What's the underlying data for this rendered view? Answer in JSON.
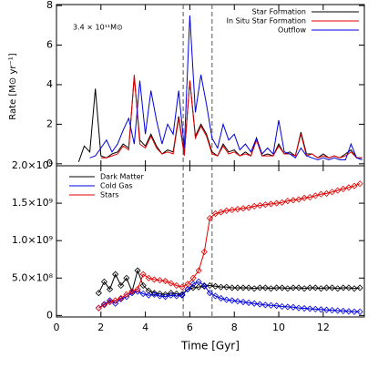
{
  "chart_data": [
    {
      "type": "line",
      "annotation": "3.4 × 10¹¹M⊙",
      "y_label": "Rate [M⊙ yr⁻¹]",
      "xlim": [
        0,
        13.85
      ],
      "ylim": [
        -0.1,
        8.05
      ],
      "yticks": [
        0,
        2,
        4,
        6,
        8
      ],
      "xticks": [
        0,
        2,
        4,
        6,
        8,
        10,
        12
      ],
      "vlines": [
        5.7,
        7.0
      ],
      "legend": "upper right",
      "x": [
        1.0,
        1.25,
        1.5,
        1.75,
        2.0,
        2.25,
        2.5,
        2.75,
        3.0,
        3.25,
        3.5,
        3.75,
        4.0,
        4.25,
        4.5,
        4.75,
        5.0,
        5.25,
        5.5,
        5.75,
        6.0,
        6.25,
        6.5,
        6.75,
        7.0,
        7.25,
        7.5,
        7.75,
        8.0,
        8.25,
        8.5,
        8.75,
        9.0,
        9.25,
        9.5,
        9.75,
        10.0,
        10.25,
        10.5,
        10.75,
        11.0,
        11.25,
        11.5,
        11.75,
        12.0,
        12.25,
        12.5,
        12.75,
        13.0,
        13.25,
        13.5,
        13.75
      ],
      "series": [
        {
          "name": "Star Formation",
          "color": "#000000",
          "values": [
            0.1,
            0.9,
            0.6,
            3.8,
            0.4,
            0.3,
            0.5,
            0.6,
            1.0,
            0.8,
            4.4,
            1.2,
            0.9,
            1.5,
            0.9,
            0.5,
            0.7,
            0.6,
            2.4,
            0.5,
            4.2,
            1.4,
            2.0,
            1.5,
            0.6,
            0.4,
            1.0,
            0.6,
            0.7,
            0.4,
            0.6,
            0.4,
            1.3,
            0.4,
            0.5,
            0.4,
            1.0,
            0.5,
            0.6,
            0.4,
            1.6,
            0.5,
            0.5,
            0.3,
            0.5,
            0.3,
            0.4,
            0.3,
            0.5,
            0.7,
            0.3,
            0.3
          ]
        },
        {
          "name": "In Situ Star Formation",
          "color": "#e00000",
          "values": [
            null,
            null,
            null,
            null,
            0.3,
            0.3,
            0.4,
            0.5,
            0.9,
            0.7,
            4.5,
            1.0,
            0.8,
            1.4,
            0.8,
            0.5,
            0.6,
            0.5,
            2.3,
            0.4,
            4.2,
            1.3,
            1.9,
            1.4,
            0.5,
            0.4,
            0.9,
            0.5,
            0.6,
            0.4,
            0.5,
            0.4,
            1.2,
            0.4,
            0.4,
            0.4,
            0.9,
            0.5,
            0.5,
            0.4,
            1.5,
            0.4,
            0.5,
            0.3,
            0.4,
            0.3,
            0.4,
            0.3,
            0.4,
            0.6,
            0.3,
            0.3
          ]
        },
        {
          "name": "Outflow",
          "color": "#0000e0",
          "values": [
            null,
            null,
            0.3,
            0.4,
            0.8,
            1.2,
            0.6,
            1.0,
            1.7,
            2.3,
            1.0,
            4.2,
            1.5,
            3.7,
            2.2,
            1.0,
            2.0,
            1.5,
            3.7,
            0.8,
            7.5,
            2.6,
            4.5,
            3.0,
            1.3,
            0.8,
            2.0,
            1.2,
            1.5,
            0.7,
            1.0,
            0.6,
            1.3,
            0.5,
            0.8,
            0.5,
            2.2,
            0.6,
            0.5,
            0.3,
            0.8,
            0.4,
            0.3,
            0.2,
            0.3,
            0.2,
            0.3,
            0.2,
            0.2,
            1.0,
            0.3,
            0.2
          ]
        }
      ]
    },
    {
      "type": "scatter-line",
      "x_label": "Time [Gyr]",
      "xlim": [
        0,
        13.85
      ],
      "ylim": [
        -20000000,
        2000000000
      ],
      "xticks": [
        0,
        2,
        4,
        6,
        8,
        10,
        12
      ],
      "yticks": [
        0,
        {
          "value": 500000000,
          "label": "5.0×10⁸"
        },
        {
          "value": 1000000000,
          "label": "1.0×10⁹"
        },
        {
          "value": 1500000000,
          "label": "1.5×10⁹"
        },
        {
          "value": 2000000000,
          "label": "2.0×10⁹"
        }
      ],
      "vlines": [
        5.7,
        7.0
      ],
      "legend": "upper left",
      "x": [
        1.9,
        2.15,
        2.4,
        2.65,
        2.9,
        3.15,
        3.4,
        3.65,
        3.9,
        4.15,
        4.4,
        4.65,
        4.9,
        5.15,
        5.4,
        5.65,
        5.9,
        6.15,
        6.4,
        6.65,
        6.9,
        7.15,
        7.4,
        7.65,
        7.9,
        8.15,
        8.4,
        8.65,
        8.9,
        9.15,
        9.4,
        9.65,
        9.9,
        10.15,
        10.4,
        10.65,
        10.9,
        11.15,
        11.4,
        11.65,
        11.9,
        12.15,
        12.4,
        12.65,
        12.9,
        13.15,
        13.4,
        13.65
      ],
      "series": [
        {
          "name": "Dark Matter",
          "color": "#000000",
          "values": [
            300000000.0,
            450000000.0,
            350000000.0,
            550000000.0,
            400000000.0,
            500000000.0,
            320000000.0,
            600000000.0,
            400000000.0,
            330000000.0,
            300000000.0,
            290000000.0,
            280000000.0,
            300000000.0,
            290000000.0,
            280000000.0,
            350000000.0,
            370000000.0,
            380000000.0,
            390000000.0,
            400000000.0,
            390000000.0,
            380000000.0,
            380000000.0,
            370000000.0,
            370000000.0,
            370000000.0,
            370000000.0,
            360000000.0,
            370000000.0,
            370000000.0,
            360000000.0,
            370000000.0,
            370000000.0,
            360000000.0,
            370000000.0,
            370000000.0,
            360000000.0,
            370000000.0,
            370000000.0,
            360000000.0,
            370000000.0,
            370000000.0,
            360000000.0,
            370000000.0,
            370000000.0,
            360000000.0,
            370000000.0
          ]
        },
        {
          "name": "Cold Gas",
          "color": "#0000e0",
          "values": [
            100000000.0,
            150000000.0,
            200000000.0,
            160000000.0,
            220000000.0,
            250000000.0,
            300000000.0,
            320000000.0,
            290000000.0,
            270000000.0,
            280000000.0,
            260000000.0,
            250000000.0,
            270000000.0,
            260000000.0,
            270000000.0,
            350000000.0,
            420000000.0,
            450000000.0,
            400000000.0,
            300000000.0,
            260000000.0,
            230000000.0,
            210000000.0,
            200000000.0,
            190000000.0,
            180000000.0,
            170000000.0,
            160000000.0,
            150000000.0,
            140000000.0,
            135000000.0,
            130000000.0,
            120000000.0,
            115000000.0,
            110000000.0,
            100000000.0,
            95000000.0,
            90000000.0,
            85000000.0,
            80000000.0,
            75000000.0,
            70000000.0,
            65000000.0,
            60000000.0,
            55000000.0,
            50000000.0,
            50000000.0
          ]
        },
        {
          "name": "Stars",
          "color": "#e00000",
          "values": [
            100000000.0,
            140000000.0,
            180000000.0,
            200000000.0,
            230000000.0,
            280000000.0,
            320000000.0,
            350000000.0,
            550000000.0,
            500000000.0,
            480000000.0,
            470000000.0,
            460000000.0,
            430000000.0,
            400000000.0,
            380000000.0,
            420000000.0,
            500000000.0,
            600000000.0,
            850000000.0,
            1300000000.0,
            1360000000.0,
            1380000000.0,
            1400000000.0,
            1410000000.0,
            1420000000.0,
            1430000000.0,
            1440000000.0,
            1460000000.0,
            1470000000.0,
            1480000000.0,
            1490000000.0,
            1500000000.0,
            1510000000.0,
            1530000000.0,
            1540000000.0,
            1550000000.0,
            1570000000.0,
            1580000000.0,
            1600000000.0,
            1620000000.0,
            1630000000.0,
            1650000000.0,
            1670000000.0,
            1690000000.0,
            1710000000.0,
            1730000000.0,
            1760000000.0
          ]
        }
      ]
    }
  ]
}
